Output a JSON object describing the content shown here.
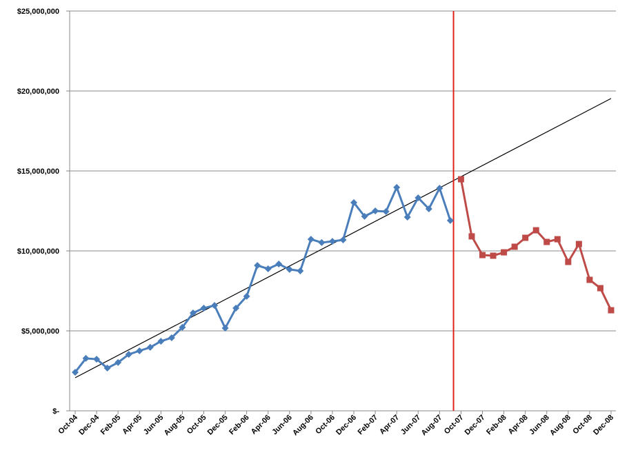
{
  "chart_data": {
    "type": "line",
    "categories": [
      "Oct-04",
      null,
      "Dec-04",
      null,
      "Feb-05",
      null,
      "Apr-05",
      null,
      "Jun-05",
      null,
      "Aug-05",
      null,
      "Oct-05",
      null,
      "Dec-05",
      null,
      "Feb-06",
      null,
      "Apr-06",
      null,
      "Jun-06",
      null,
      "Aug-06",
      null,
      "Oct-06",
      null,
      "Dec-06",
      null,
      "Feb-07",
      null,
      "Apr-07",
      null,
      "Jun-07",
      null,
      "Aug-07",
      null,
      "Oct-07",
      null,
      "Dec-07",
      null,
      "Feb-08",
      null,
      "Apr-08",
      null,
      "Jun-08",
      null,
      "Aug-08",
      null,
      "Oct-08",
      null,
      "Dec-08"
    ],
    "series": [
      {
        "color": "#4a7ebb",
        "marker": "diamond",
        "values": [
          2410000,
          3280000,
          3230000,
          2670000,
          3020000,
          3530000,
          3750000,
          3970000,
          4350000,
          4570000,
          5220000,
          6120000,
          6420000,
          6590000,
          5170000,
          6420000,
          7160000,
          9090000,
          8880000,
          9180000,
          8840000,
          8750000,
          10730000,
          10520000,
          10600000,
          10690000,
          13020000,
          12160000,
          12500000,
          12460000,
          13970000,
          12110000,
          13320000,
          12630000,
          13920000,
          11900000,
          null,
          null,
          null,
          null,
          null,
          null,
          null,
          null,
          null,
          null,
          null,
          null,
          null,
          null,
          null
        ]
      },
      {
        "color": "#be4b48",
        "marker": "square",
        "values": [
          null,
          null,
          null,
          null,
          null,
          null,
          null,
          null,
          null,
          null,
          null,
          null,
          null,
          null,
          null,
          null,
          null,
          null,
          null,
          null,
          null,
          null,
          null,
          null,
          null,
          null,
          null,
          null,
          null,
          null,
          null,
          null,
          null,
          null,
          null,
          null,
          14480000,
          10910000,
          9740000,
          9700000,
          9910000,
          10260000,
          10820000,
          11290000,
          10560000,
          10730000,
          9310000,
          10430000,
          8190000,
          7670000,
          6290000
        ]
      }
    ],
    "trendline": [
      2070000,
      19530000
    ],
    "trendline_color": "#000000",
    "divider_color": "#e0201b",
    "ylim": [
      0,
      25000000
    ],
    "yticks": [
      {
        "value": 0,
        "label": "$-"
      },
      {
        "value": 5000000,
        "label": "$5,000,000"
      },
      {
        "value": 10000000,
        "label": "$10,000,000"
      },
      {
        "value": 15000000,
        "label": "$15,000,000"
      },
      {
        "value": 20000000,
        "label": "$20,000,000"
      },
      {
        "value": 25000000,
        "label": "$25,000,000"
      }
    ],
    "grid": true
  }
}
